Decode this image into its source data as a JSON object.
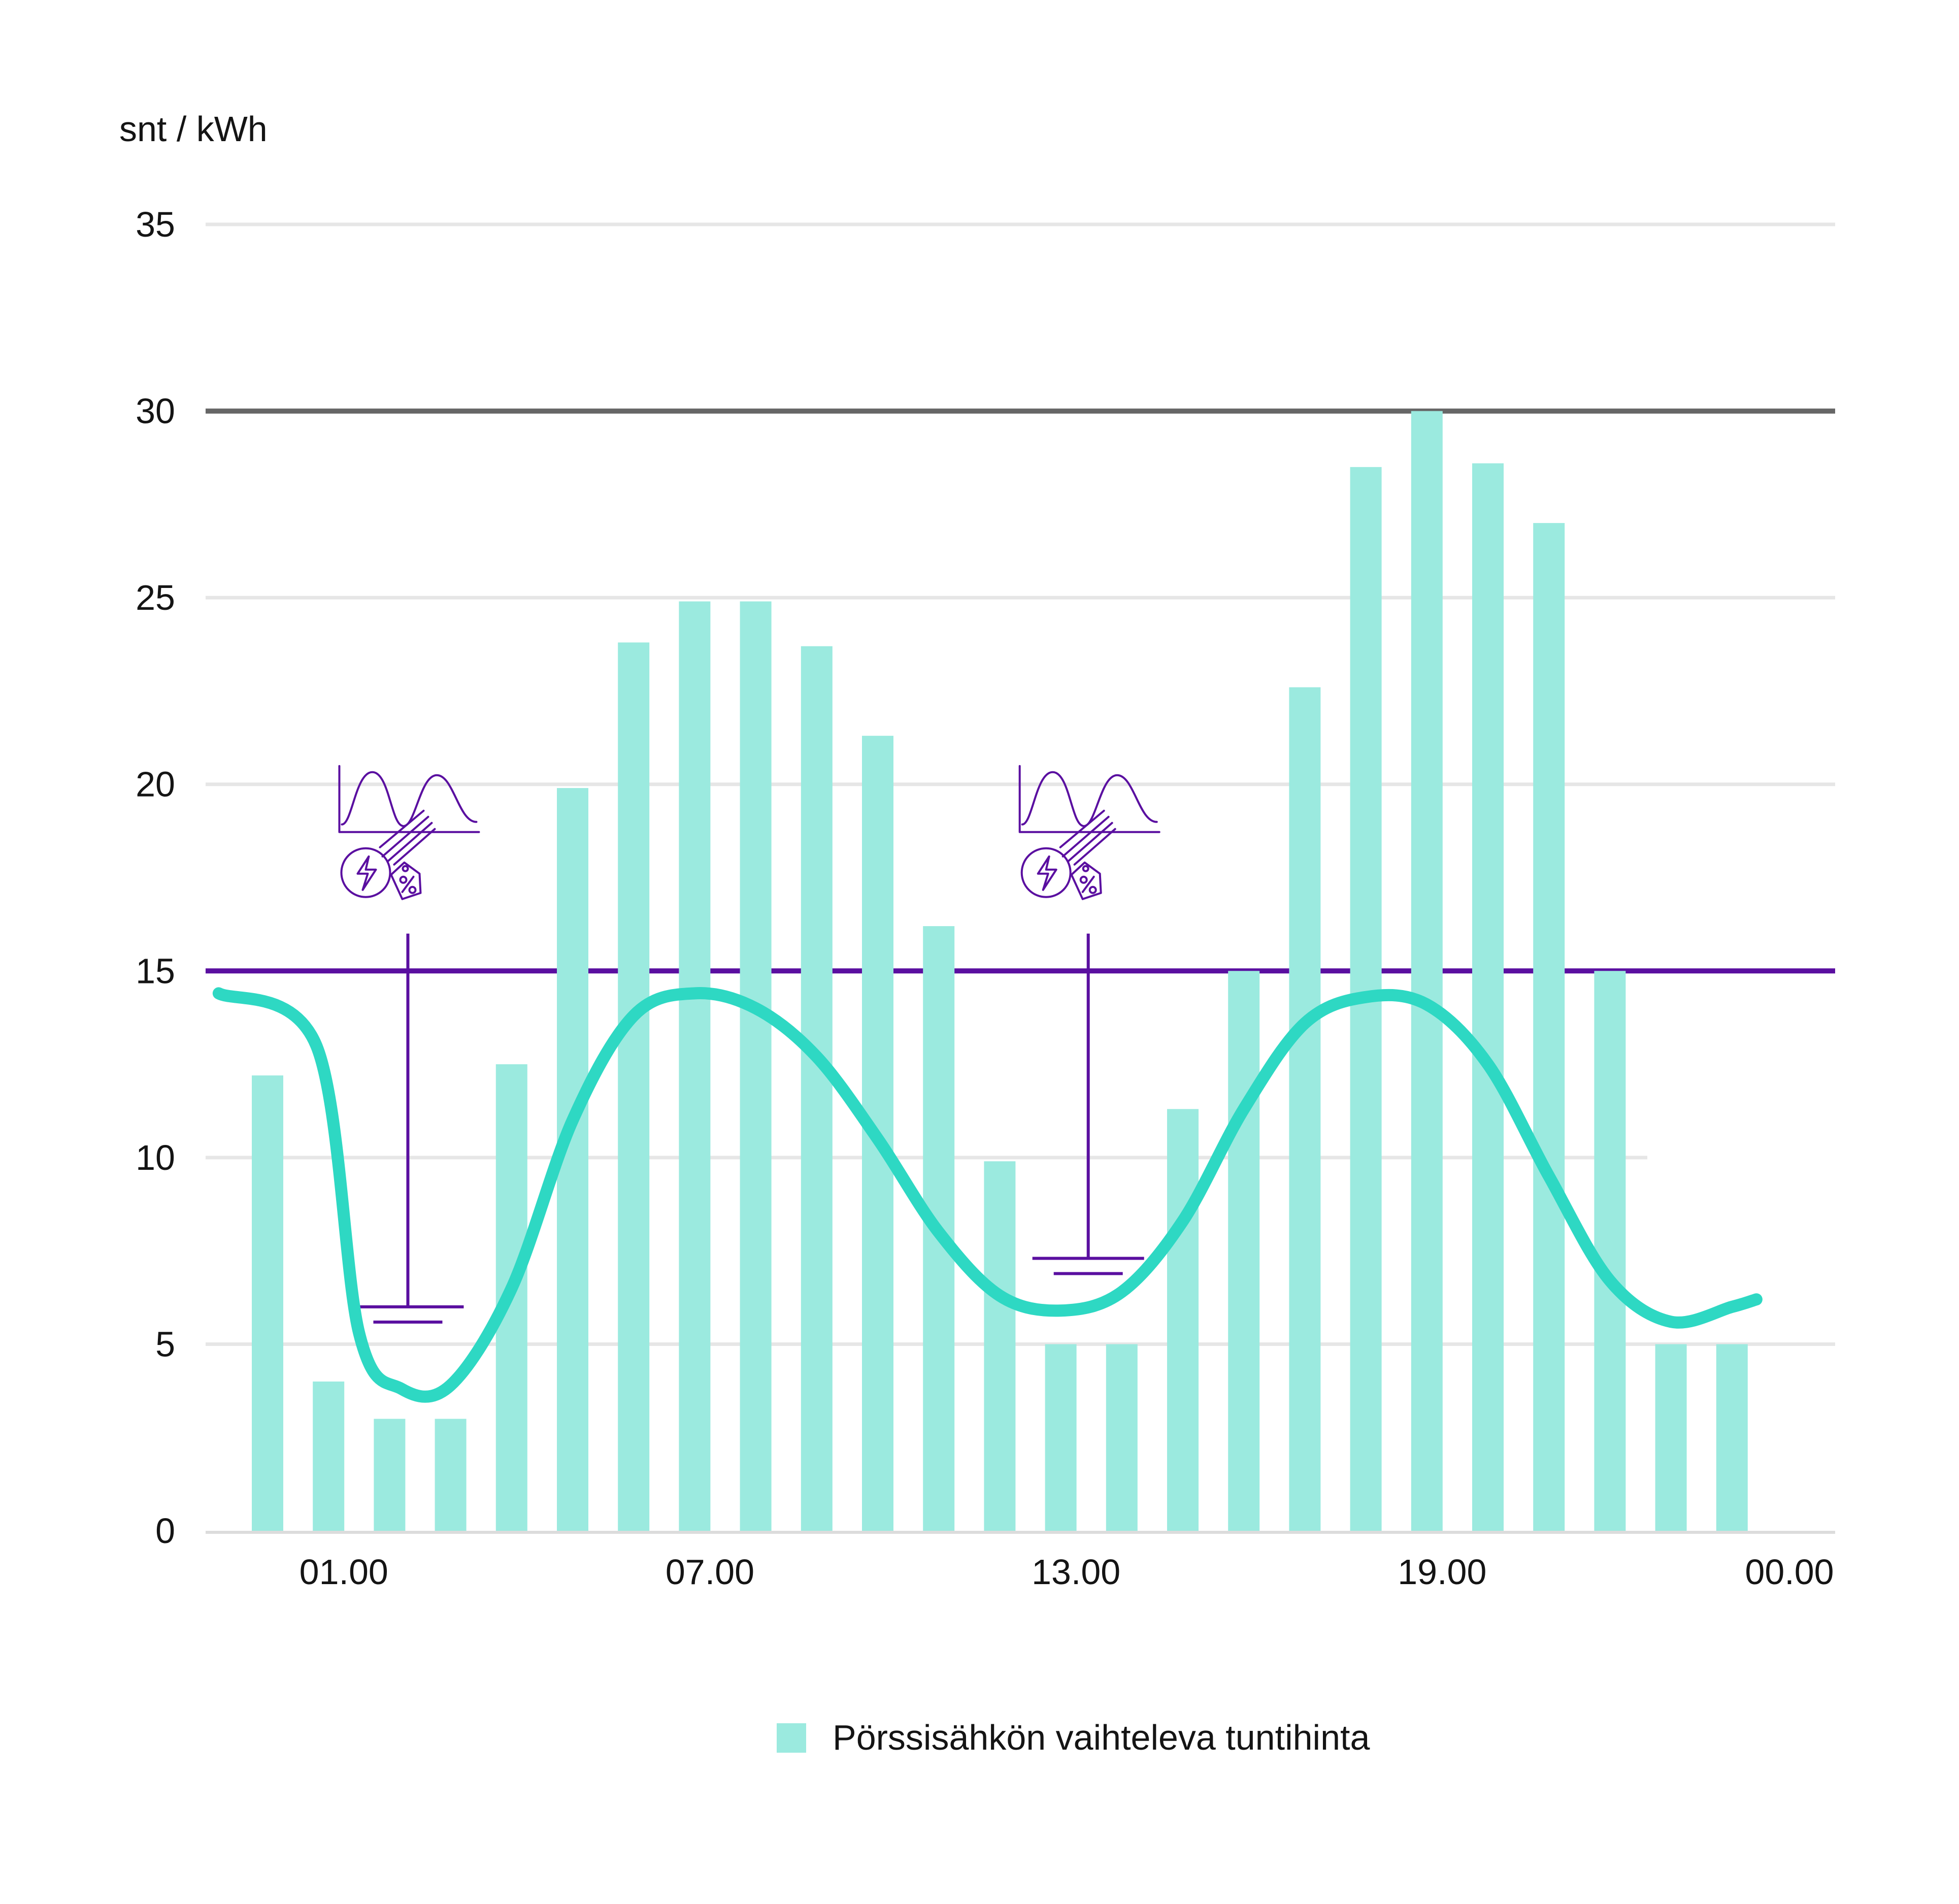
{
  "chart_data": {
    "type": "bar",
    "ylabel": "snt / kWh",
    "ylim": [
      0,
      35
    ],
    "y_ticks": [
      "0",
      "5",
      "10",
      "15",
      "20",
      "25",
      "30",
      "35"
    ],
    "x_tick_labels": [
      "01.00",
      "07.00",
      "13.00",
      "19.00",
      "00.00"
    ],
    "grid": true,
    "legend_position": "bottom",
    "series": [
      {
        "name": "Pörssisähkön vaihteleva tuntihinta",
        "color": "#9beadf",
        "values": [
          12.2,
          4.0,
          3.0,
          3.0,
          12.5,
          19.9,
          23.8,
          24.9,
          24.9,
          23.7,
          21.3,
          16.2,
          9.9,
          5.0,
          5.0,
          11.3,
          15.0,
          22.6,
          28.5,
          30.0,
          28.6,
          27.0,
          15.0,
          5.0,
          5.0
        ]
      }
    ],
    "reference_lines": [
      {
        "value": 30,
        "color": "#666666"
      },
      {
        "value": 15,
        "color": "#5a0fa0"
      }
    ],
    "consumption_curve": {
      "color": "#2ed8c3",
      "points": [
        [
          -0.8,
          14.4
        ],
        [
          0.8,
          13.0
        ],
        [
          1.5,
          5.3
        ],
        [
          2.2,
          3.8
        ],
        [
          3.0,
          3.9
        ],
        [
          4.0,
          6.5
        ],
        [
          5.0,
          11.0
        ],
        [
          6.0,
          13.8
        ],
        [
          7.0,
          14.4
        ],
        [
          8.0,
          14.0
        ],
        [
          9.0,
          12.7
        ],
        [
          10.0,
          10.5
        ],
        [
          11.0,
          8.0
        ],
        [
          12.0,
          6.3
        ],
        [
          13.0,
          5.9
        ],
        [
          14.0,
          6.4
        ],
        [
          15.0,
          8.3
        ],
        [
          16.0,
          11.3
        ],
        [
          17.0,
          13.6
        ],
        [
          18.0,
          14.3
        ],
        [
          19.0,
          14.1
        ],
        [
          20.0,
          12.5
        ],
        [
          21.0,
          9.5
        ],
        [
          22.0,
          6.7
        ],
        [
          23.0,
          5.6
        ],
        [
          24.0,
          6.0
        ],
        [
          24.4,
          6.2
        ]
      ]
    },
    "markers": [
      {
        "hour": 2.3,
        "top_value": 16.0,
        "ground_value": 6.0,
        "icon": "spot-price-energy-icon"
      },
      {
        "hour": 13.45,
        "top_value": 16.0,
        "ground_value": 7.3,
        "icon": "spot-price-energy-icon"
      }
    ]
  }
}
